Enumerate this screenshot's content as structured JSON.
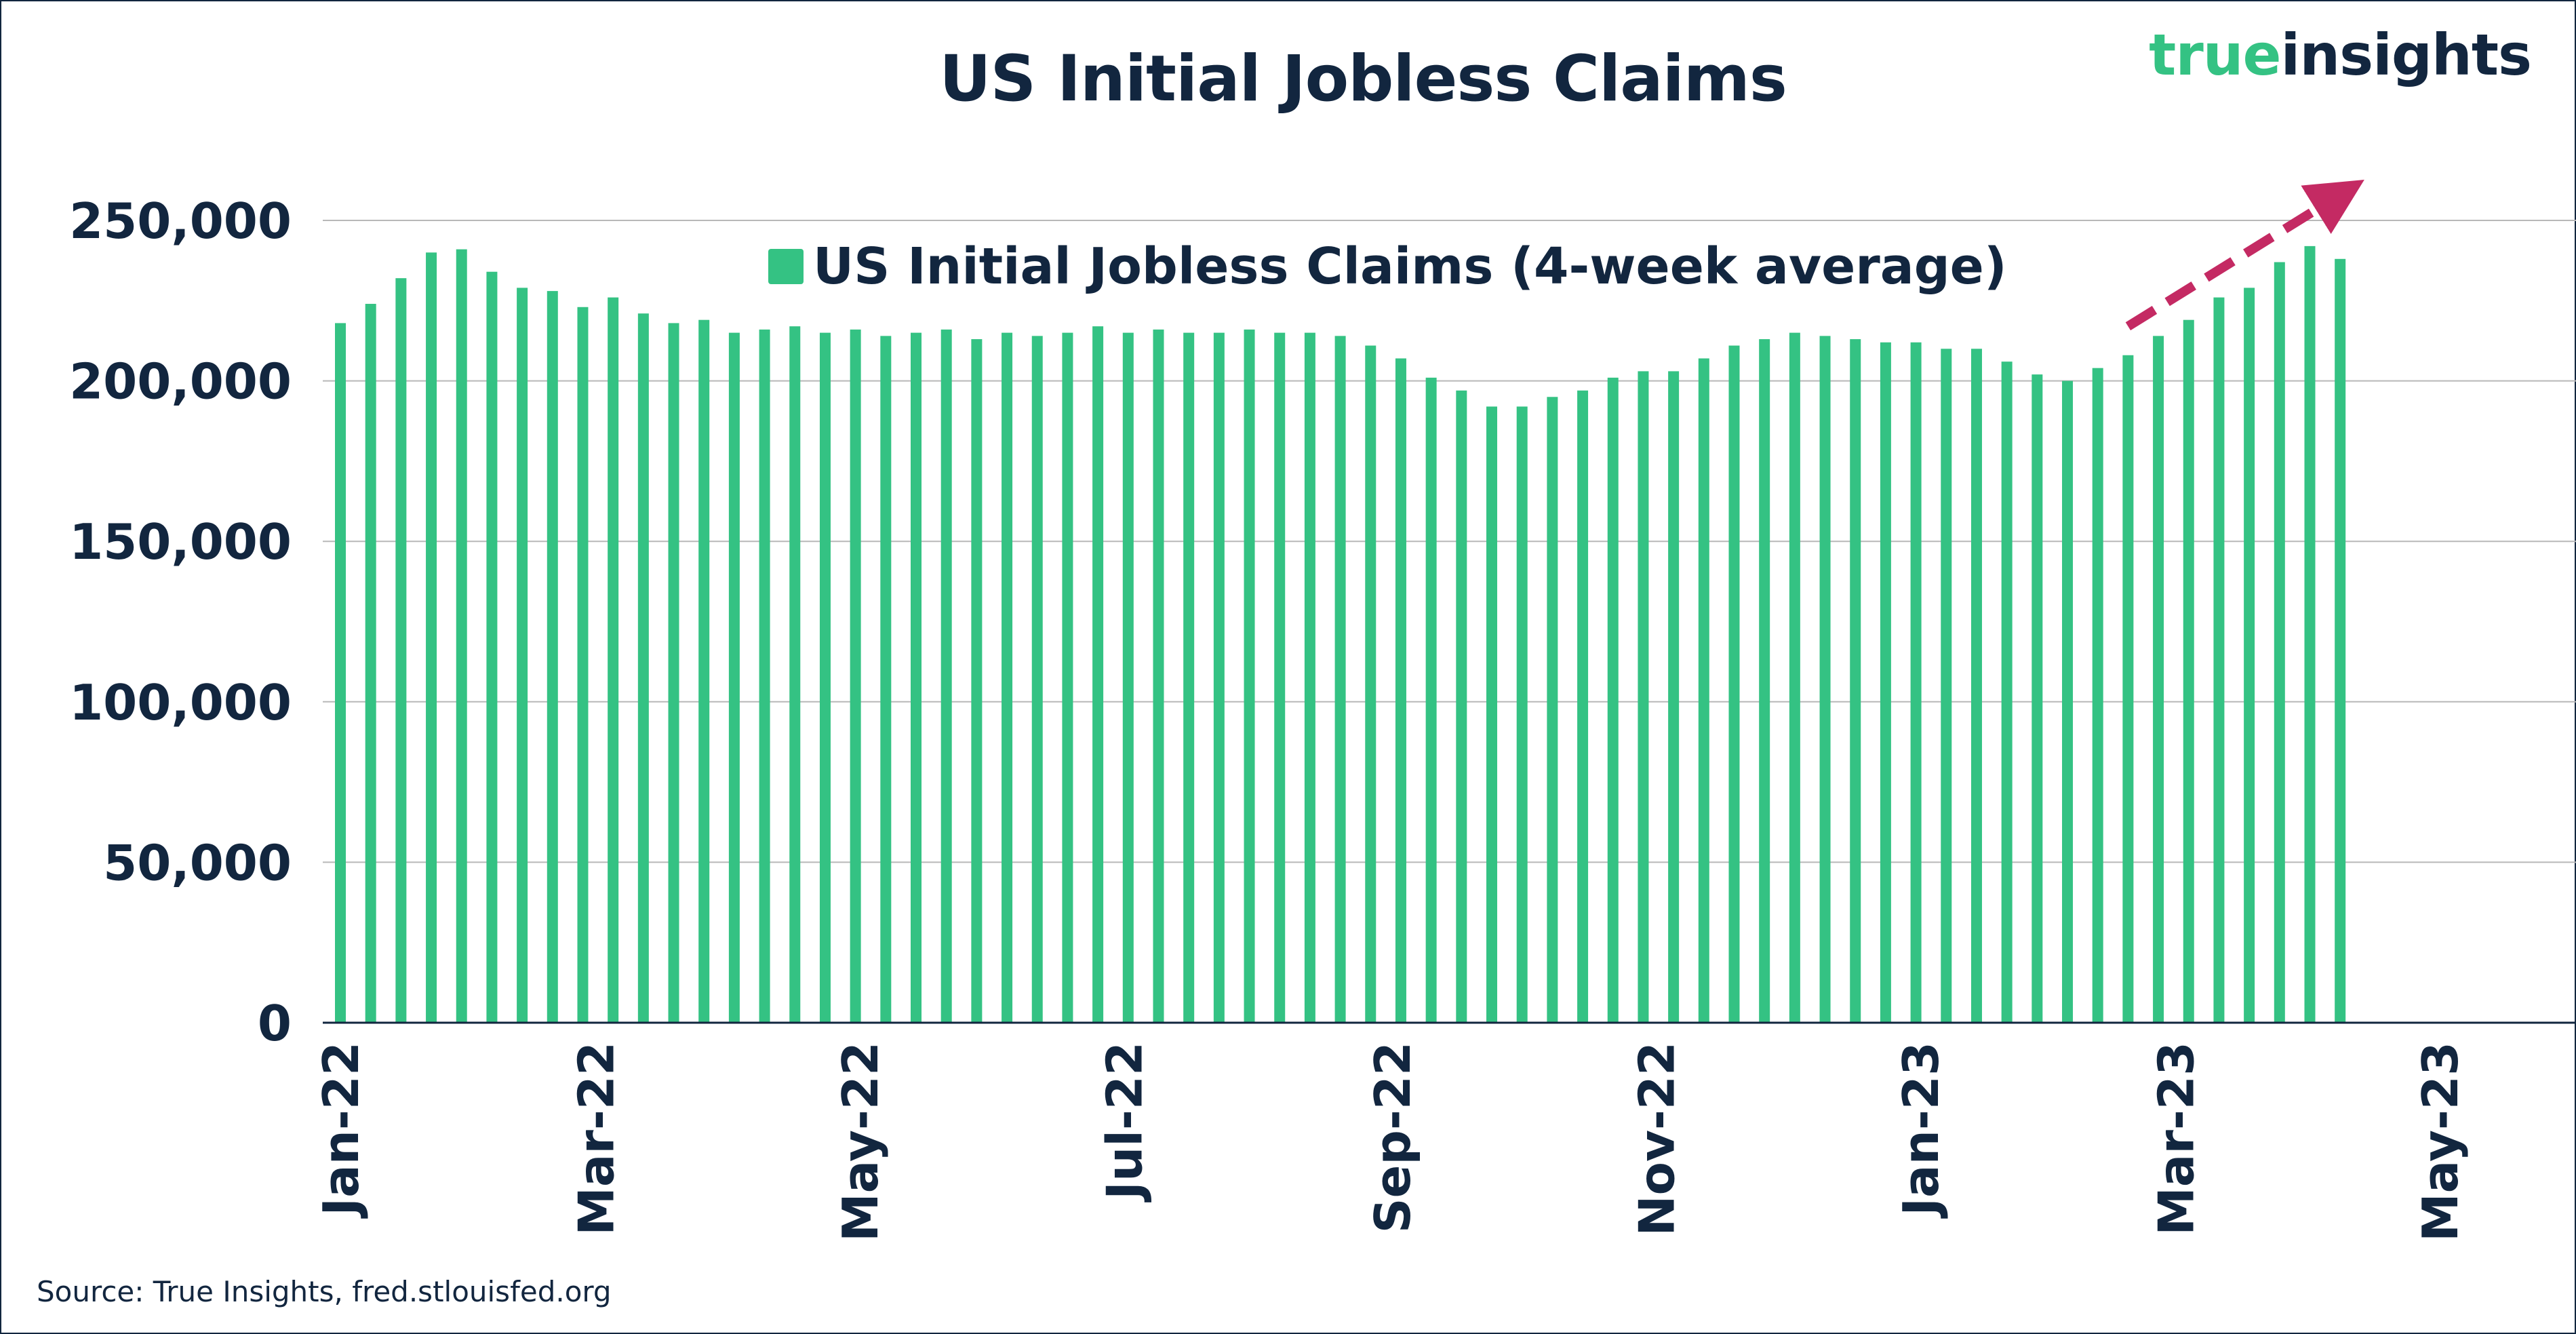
{
  "title": "US Initial Jobless Claims",
  "logo": {
    "word1": "true",
    "word2": "insights"
  },
  "source": "Source: True Insights, fred.stlouisfed.org",
  "colors": {
    "bar": "#34c283",
    "text": "#12263f",
    "arrow": "#c42a63",
    "grid": "#b8b8b8"
  },
  "chart_data": {
    "type": "bar",
    "title": "US Initial Jobless Claims",
    "xlabel": "",
    "ylabel": "",
    "ylim": [
      0,
      250000
    ],
    "grid": true,
    "legend_position": "top-center",
    "y_ticks": [
      "0",
      "50,000",
      "100,000",
      "150,000",
      "200,000",
      "250,000"
    ],
    "x_ticks": [
      "Jan-22",
      "Mar-22",
      "May-22",
      "Jul-22",
      "Sep-22",
      "Nov-22",
      "Jan-23",
      "Mar-23",
      "May-23"
    ],
    "x_range": [
      "2022-01-01",
      "2023-05-01"
    ],
    "series": [
      {
        "name": "US Initial Jobless Claims (4-week average)",
        "x": [
          "2022-01-01",
          "2022-01-08",
          "2022-01-15",
          "2022-01-22",
          "2022-01-29",
          "2022-02-05",
          "2022-02-12",
          "2022-02-19",
          "2022-02-26",
          "2022-03-05",
          "2022-03-12",
          "2022-03-19",
          "2022-03-26",
          "2022-04-02",
          "2022-04-09",
          "2022-04-16",
          "2022-04-23",
          "2022-04-30",
          "2022-05-07",
          "2022-05-14",
          "2022-05-21",
          "2022-05-28",
          "2022-06-04",
          "2022-06-11",
          "2022-06-18",
          "2022-06-25",
          "2022-07-02",
          "2022-07-09",
          "2022-07-16",
          "2022-07-23",
          "2022-07-30",
          "2022-08-06",
          "2022-08-13",
          "2022-08-20",
          "2022-08-27",
          "2022-09-03",
          "2022-09-10",
          "2022-09-17",
          "2022-09-24",
          "2022-10-01",
          "2022-10-08",
          "2022-10-15",
          "2022-10-22",
          "2022-10-29",
          "2022-11-05",
          "2022-11-12",
          "2022-11-19",
          "2022-11-26",
          "2022-12-03",
          "2022-12-10",
          "2022-12-17",
          "2022-12-24",
          "2022-12-31",
          "2023-01-07",
          "2023-01-14",
          "2023-01-21",
          "2023-01-28",
          "2023-02-04",
          "2023-02-11",
          "2023-02-18",
          "2023-02-25",
          "2023-03-04",
          "2023-03-11",
          "2023-03-18",
          "2023-03-25",
          "2023-04-01",
          "2023-04-08"
        ],
        "values": [
          218000,
          224000,
          232000,
          240000,
          241000,
          234000,
          229000,
          228000,
          223000,
          226000,
          221000,
          218000,
          219000,
          215000,
          216000,
          217000,
          215000,
          216000,
          214000,
          215000,
          216000,
          213000,
          215000,
          214000,
          215000,
          217000,
          215000,
          216000,
          215000,
          215000,
          216000,
          215000,
          215000,
          214000,
          211000,
          207000,
          201000,
          197000,
          192000,
          192000,
          195000,
          197000,
          201000,
          203000,
          203000,
          207000,
          211000,
          213000,
          215000,
          214000,
          213000,
          212000,
          212000,
          210000,
          210000,
          206000,
          202000,
          200000,
          204000,
          208000,
          214000,
          219000,
          226000,
          229000,
          237000,
          242000,
          238000
        ]
      }
    ],
    "annotations": [
      {
        "type": "dashed-arrow",
        "description": "upward trend",
        "from": [
          "2023-02-18",
          217000
        ],
        "to": [
          "2023-04-08",
          258000
        ]
      }
    ]
  }
}
